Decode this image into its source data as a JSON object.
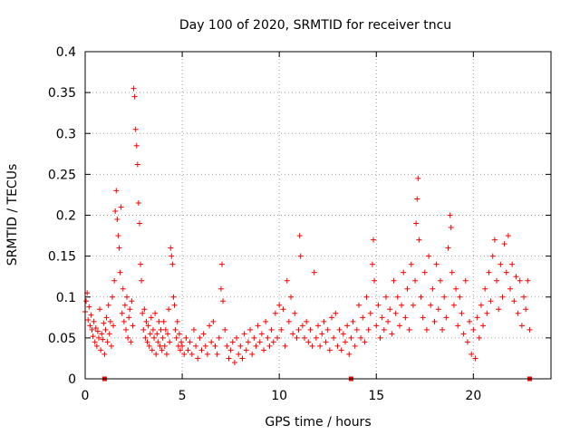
{
  "chart_data": {
    "type": "scatter",
    "title": "Day 100 of 2020, SRMTID for receiver tncu",
    "xlabel": "GPS time / hours",
    "ylabel": "SRMTID / TECUs",
    "xlim": [
      0,
      24
    ],
    "ylim": [
      0,
      0.4
    ],
    "xticks": [
      0,
      5,
      10,
      15,
      20
    ],
    "yticks": [
      0,
      0.05,
      0.1,
      0.15,
      0.2,
      0.25,
      0.3,
      0.35,
      0.4
    ],
    "xtick_labels": [
      "0",
      "5",
      "10",
      "15",
      "20"
    ],
    "ytick_labels": [
      "0",
      "0.05",
      "0.1",
      "0.15",
      "0.2",
      "0.25",
      "0.3",
      "0.35",
      "0.4"
    ],
    "grid": true,
    "marker": "+",
    "series_color": "#ff0000",
    "series": [
      {
        "name": "SRMTID",
        "points": [
          [
            0.0,
            0.082
          ],
          [
            0.05,
            0.095
          ],
          [
            0.1,
            0.105
          ],
          [
            0.15,
            0.072
          ],
          [
            0.2,
            0.088
          ],
          [
            0.25,
            0.065
          ],
          [
            0.3,
            0.078
          ],
          [
            0.35,
            0.06
          ],
          [
            0.4,
            0.052
          ],
          [
            0.45,
            0.07
          ],
          [
            0.5,
            0.045
          ],
          [
            0.55,
            0.062
          ],
          [
            0.6,
            0.04
          ],
          [
            0.65,
            0.058
          ],
          [
            0.7,
            0.05
          ],
          [
            0.75,
            0.085
          ],
          [
            0.8,
            0.035
          ],
          [
            0.85,
            0.055
          ],
          [
            0.9,
            0.048
          ],
          [
            0.95,
            0.068
          ],
          [
            1.0,
            0.03
          ],
          [
            1.05,
            0.06
          ],
          [
            1.1,
            0.075
          ],
          [
            1.15,
            0.045
          ],
          [
            1.2,
            0.09
          ],
          [
            1.25,
            0.055
          ],
          [
            1.3,
            0.07
          ],
          [
            1.35,
            0.04
          ],
          [
            1.4,
            0.1
          ],
          [
            1.45,
            0.065
          ],
          [
            1.5,
            0.12
          ],
          [
            1.55,
            0.205
          ],
          [
            1.6,
            0.23
          ],
          [
            1.65,
            0.195
          ],
          [
            1.7,
            0.175
          ],
          [
            1.75,
            0.16
          ],
          [
            1.8,
            0.13
          ],
          [
            1.85,
            0.21
          ],
          [
            1.9,
            0.08
          ],
          [
            1.95,
            0.11
          ],
          [
            2.0,
            0.07
          ],
          [
            2.05,
            0.09
          ],
          [
            2.1,
            0.06
          ],
          [
            2.15,
            0.1
          ],
          [
            2.2,
            0.05
          ],
          [
            2.25,
            0.075
          ],
          [
            2.3,
            0.085
          ],
          [
            2.35,
            0.045
          ],
          [
            2.4,
            0.095
          ],
          [
            2.45,
            0.065
          ],
          [
            2.5,
            0.355
          ],
          [
            2.55,
            0.345
          ],
          [
            2.6,
            0.305
          ],
          [
            2.65,
            0.285
          ],
          [
            2.7,
            0.262
          ],
          [
            2.75,
            0.215
          ],
          [
            2.8,
            0.19
          ],
          [
            2.85,
            0.14
          ],
          [
            2.9,
            0.12
          ],
          [
            2.95,
            0.08
          ],
          [
            3.0,
            0.06
          ],
          [
            3.05,
            0.085
          ],
          [
            3.1,
            0.05
          ],
          [
            3.15,
            0.07
          ],
          [
            3.2,
            0.045
          ],
          [
            3.25,
            0.065
          ],
          [
            3.3,
            0.04
          ],
          [
            3.35,
            0.055
          ],
          [
            3.4,
            0.075
          ],
          [
            3.45,
            0.035
          ],
          [
            3.5,
            0.06
          ],
          [
            3.55,
            0.05
          ],
          [
            3.6,
            0.08
          ],
          [
            3.65,
            0.03
          ],
          [
            3.7,
            0.055
          ],
          [
            3.75,
            0.045
          ],
          [
            3.8,
            0.07
          ],
          [
            3.85,
            0.04
          ],
          [
            3.9,
            0.06
          ],
          [
            3.95,
            0.035
          ],
          [
            4.0,
            0.05
          ],
          [
            4.05,
            0.07
          ],
          [
            4.1,
            0.04
          ],
          [
            4.15,
            0.06
          ],
          [
            4.2,
            0.03
          ],
          [
            4.25,
            0.055
          ],
          [
            4.3,
            0.085
          ],
          [
            4.35,
            0.045
          ],
          [
            4.4,
            0.16
          ],
          [
            4.45,
            0.15
          ],
          [
            4.5,
            0.14
          ],
          [
            4.55,
            0.1
          ],
          [
            4.6,
            0.09
          ],
          [
            4.65,
            0.06
          ],
          [
            4.7,
            0.05
          ],
          [
            4.75,
            0.07
          ],
          [
            4.8,
            0.04
          ],
          [
            4.85,
            0.055
          ],
          [
            4.9,
            0.035
          ],
          [
            4.95,
            0.045
          ],
          [
            5.0,
            0.04
          ],
          [
            5.1,
            0.03
          ],
          [
            5.2,
            0.05
          ],
          [
            5.3,
            0.035
          ],
          [
            5.4,
            0.045
          ],
          [
            5.5,
            0.03
          ],
          [
            5.6,
            0.06
          ],
          [
            5.7,
            0.04
          ],
          [
            5.8,
            0.025
          ],
          [
            5.9,
            0.05
          ],
          [
            6.0,
            0.035
          ],
          [
            6.1,
            0.055
          ],
          [
            6.2,
            0.04
          ],
          [
            6.3,
            0.03
          ],
          [
            6.4,
            0.065
          ],
          [
            6.5,
            0.045
          ],
          [
            6.6,
            0.07
          ],
          [
            6.7,
            0.04
          ],
          [
            6.8,
            0.03
          ],
          [
            6.9,
            0.05
          ],
          [
            7.0,
            0.11
          ],
          [
            7.05,
            0.14
          ],
          [
            7.1,
            0.095
          ],
          [
            7.2,
            0.06
          ],
          [
            7.3,
            0.04
          ],
          [
            7.4,
            0.025
          ],
          [
            7.5,
            0.035
          ],
          [
            7.6,
            0.045
          ],
          [
            7.7,
            0.02
          ],
          [
            7.8,
            0.05
          ],
          [
            7.9,
            0.03
          ],
          [
            8.0,
            0.04
          ],
          [
            8.1,
            0.025
          ],
          [
            8.2,
            0.055
          ],
          [
            8.3,
            0.035
          ],
          [
            8.4,
            0.045
          ],
          [
            8.5,
            0.06
          ],
          [
            8.6,
            0.03
          ],
          [
            8.7,
            0.05
          ],
          [
            8.8,
            0.04
          ],
          [
            8.9,
            0.065
          ],
          [
            9.0,
            0.045
          ],
          [
            9.1,
            0.055
          ],
          [
            9.2,
            0.035
          ],
          [
            9.3,
            0.07
          ],
          [
            9.4,
            0.05
          ],
          [
            9.5,
            0.04
          ],
          [
            9.6,
            0.06
          ],
          [
            9.7,
            0.045
          ],
          [
            9.8,
            0.08
          ],
          [
            9.9,
            0.05
          ],
          [
            10.0,
            0.09
          ],
          [
            10.1,
            0.06
          ],
          [
            10.2,
            0.085
          ],
          [
            10.3,
            0.04
          ],
          [
            10.4,
            0.12
          ],
          [
            10.5,
            0.07
          ],
          [
            10.6,
            0.1
          ],
          [
            10.7,
            0.055
          ],
          [
            10.8,
            0.08
          ],
          [
            10.9,
            0.05
          ],
          [
            11.0,
            0.06
          ],
          [
            11.05,
            0.175
          ],
          [
            11.1,
            0.15
          ],
          [
            11.2,
            0.065
          ],
          [
            11.3,
            0.05
          ],
          [
            11.4,
            0.07
          ],
          [
            11.5,
            0.045
          ],
          [
            11.6,
            0.06
          ],
          [
            11.7,
            0.04
          ],
          [
            11.8,
            0.13
          ],
          [
            11.9,
            0.05
          ],
          [
            12.0,
            0.065
          ],
          [
            12.1,
            0.04
          ],
          [
            12.2,
            0.055
          ],
          [
            12.3,
            0.07
          ],
          [
            12.4,
            0.045
          ],
          [
            12.5,
            0.06
          ],
          [
            12.6,
            0.035
          ],
          [
            12.7,
            0.075
          ],
          [
            12.8,
            0.05
          ],
          [
            12.9,
            0.08
          ],
          [
            13.0,
            0.04
          ],
          [
            13.1,
            0.06
          ],
          [
            13.2,
            0.035
          ],
          [
            13.3,
            0.055
          ],
          [
            13.4,
            0.045
          ],
          [
            13.5,
            0.065
          ],
          [
            13.6,
            0.03
          ],
          [
            13.7,
            0.05
          ],
          [
            13.8,
            0.07
          ],
          [
            13.9,
            0.04
          ],
          [
            14.0,
            0.06
          ],
          [
            14.1,
            0.09
          ],
          [
            14.2,
            0.05
          ],
          [
            14.3,
            0.075
          ],
          [
            14.4,
            0.045
          ],
          [
            14.5,
            0.1
          ],
          [
            14.6,
            0.06
          ],
          [
            14.7,
            0.08
          ],
          [
            14.8,
            0.14
          ],
          [
            14.85,
            0.17
          ],
          [
            14.9,
            0.12
          ],
          [
            15.0,
            0.065
          ],
          [
            15.1,
            0.09
          ],
          [
            15.2,
            0.05
          ],
          [
            15.3,
            0.075
          ],
          [
            15.4,
            0.06
          ],
          [
            15.5,
            0.1
          ],
          [
            15.6,
            0.07
          ],
          [
            15.7,
            0.085
          ],
          [
            15.8,
            0.055
          ],
          [
            15.9,
            0.12
          ],
          [
            16.0,
            0.08
          ],
          [
            16.1,
            0.1
          ],
          [
            16.2,
            0.065
          ],
          [
            16.3,
            0.09
          ],
          [
            16.4,
            0.13
          ],
          [
            16.5,
            0.075
          ],
          [
            16.6,
            0.11
          ],
          [
            16.7,
            0.06
          ],
          [
            16.8,
            0.14
          ],
          [
            16.9,
            0.09
          ],
          [
            17.0,
            0.12
          ],
          [
            17.05,
            0.19
          ],
          [
            17.1,
            0.22
          ],
          [
            17.15,
            0.245
          ],
          [
            17.2,
            0.17
          ],
          [
            17.3,
            0.1
          ],
          [
            17.4,
            0.075
          ],
          [
            17.5,
            0.13
          ],
          [
            17.6,
            0.06
          ],
          [
            17.7,
            0.15
          ],
          [
            17.8,
            0.09
          ],
          [
            17.9,
            0.11
          ],
          [
            18.0,
            0.07
          ],
          [
            18.1,
            0.14
          ],
          [
            18.2,
            0.085
          ],
          [
            18.3,
            0.12
          ],
          [
            18.4,
            0.06
          ],
          [
            18.5,
            0.1
          ],
          [
            18.6,
            0.075
          ],
          [
            18.7,
            0.16
          ],
          [
            18.8,
            0.2
          ],
          [
            18.85,
            0.185
          ],
          [
            18.9,
            0.13
          ],
          [
            19.0,
            0.09
          ],
          [
            19.1,
            0.11
          ],
          [
            19.2,
            0.065
          ],
          [
            19.3,
            0.1
          ],
          [
            19.4,
            0.08
          ],
          [
            19.5,
            0.055
          ],
          [
            19.6,
            0.12
          ],
          [
            19.7,
            0.045
          ],
          [
            19.8,
            0.07
          ],
          [
            19.9,
            0.03
          ],
          [
            20.0,
            0.06
          ],
          [
            20.1,
            0.025
          ],
          [
            20.2,
            0.075
          ],
          [
            20.3,
            0.05
          ],
          [
            20.4,
            0.09
          ],
          [
            20.5,
            0.065
          ],
          [
            20.6,
            0.11
          ],
          [
            20.7,
            0.08
          ],
          [
            20.8,
            0.13
          ],
          [
            20.9,
            0.095
          ],
          [
            21.0,
            0.15
          ],
          [
            21.1,
            0.17
          ],
          [
            21.2,
            0.12
          ],
          [
            21.3,
            0.085
          ],
          [
            21.4,
            0.14
          ],
          [
            21.5,
            0.1
          ],
          [
            21.6,
            0.165
          ],
          [
            21.7,
            0.13
          ],
          [
            21.8,
            0.175
          ],
          [
            21.9,
            0.11
          ],
          [
            22.0,
            0.14
          ],
          [
            22.1,
            0.095
          ],
          [
            22.2,
            0.125
          ],
          [
            22.3,
            0.08
          ],
          [
            22.4,
            0.12
          ],
          [
            22.5,
            0.065
          ],
          [
            22.6,
            0.1
          ],
          [
            22.7,
            0.085
          ],
          [
            22.8,
            0.12
          ],
          [
            22.9,
            0.06
          ]
        ]
      }
    ],
    "zero_markers": [
      1.0,
      13.7,
      22.9
    ]
  }
}
